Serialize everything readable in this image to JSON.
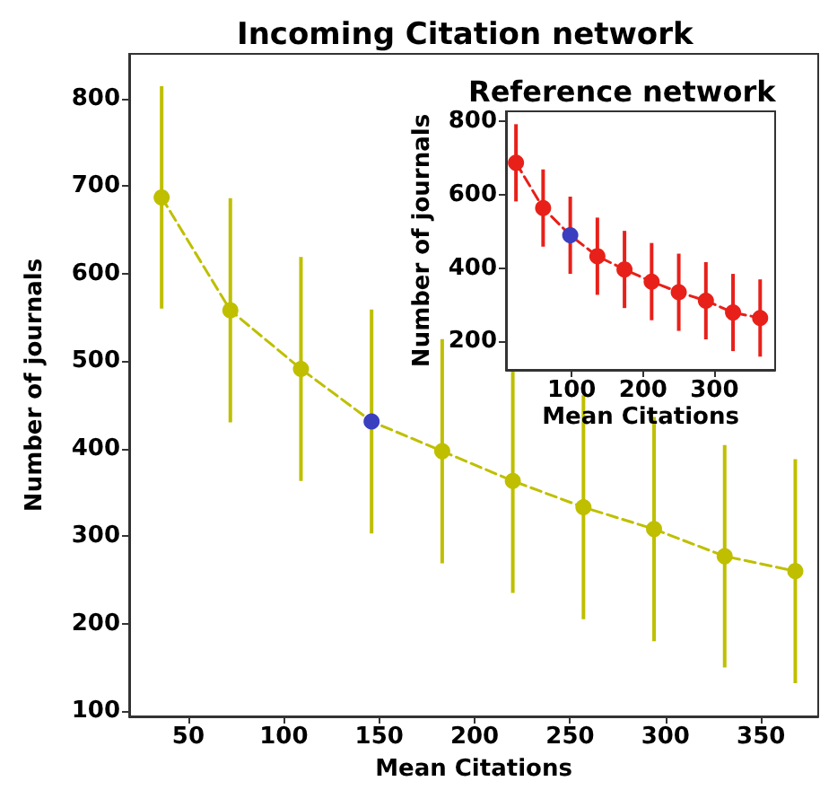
{
  "chart_data": [
    {
      "type": "line",
      "title": "Incoming Citation network",
      "xlabel": "Mean Citations",
      "ylabel": "Number of journals",
      "xlim": [
        19,
        380
      ],
      "xticks": [
        50,
        100,
        150,
        200,
        250,
        300,
        350
      ],
      "ylim": [
        94,
        851
      ],
      "yticks": [
        100,
        200,
        300,
        400,
        500,
        600,
        700,
        800
      ],
      "grid": false,
      "marker": "circle",
      "line_style": "dashed",
      "series": [
        {
          "color": "#bfbf00",
          "colors": [
            "#bfbf00",
            "#bfbf00",
            "#bfbf00",
            "#3a3fbf",
            "#bfbf00",
            "#bfbf00",
            "#bfbf00",
            "#bfbf00",
            "#bfbf00",
            "#bfbf00"
          ],
          "x": [
            36,
            72,
            109,
            146,
            183,
            220,
            257,
            294,
            331,
            368
          ],
          "values": [
            687,
            558,
            491,
            431,
            397,
            363,
            333,
            308,
            277,
            260
          ],
          "errors": [
            127,
            128,
            128,
            128,
            128,
            128,
            128,
            128,
            127,
            128
          ]
        }
      ]
    },
    {
      "type": "line",
      "title": "Reference network",
      "xlabel": "Mean Citations",
      "ylabel": "Number of journals",
      "xlim": [
        8,
        385
      ],
      "xticks": [
        100,
        200,
        300
      ],
      "ylim": [
        123,
        826
      ],
      "yticks": [
        200,
        400,
        600,
        800
      ],
      "grid": false,
      "marker": "circle",
      "line_style": "dashed",
      "series": [
        {
          "color": "#e8201a",
          "colors": [
            "#e8201a",
            "#e8201a",
            "#3a3fbf",
            "#e8201a",
            "#e8201a",
            "#e8201a",
            "#e8201a",
            "#e8201a",
            "#e8201a",
            "#e8201a"
          ],
          "x": [
            22,
            60,
            98,
            136,
            174,
            212,
            250,
            288,
            326,
            364
          ],
          "values": [
            686,
            563,
            489,
            432,
            396,
            363,
            334,
            311,
            279,
            264
          ],
          "errors": [
            105,
            105,
            105,
            105,
            105,
            105,
            105,
            105,
            105,
            105
          ]
        }
      ]
    }
  ]
}
